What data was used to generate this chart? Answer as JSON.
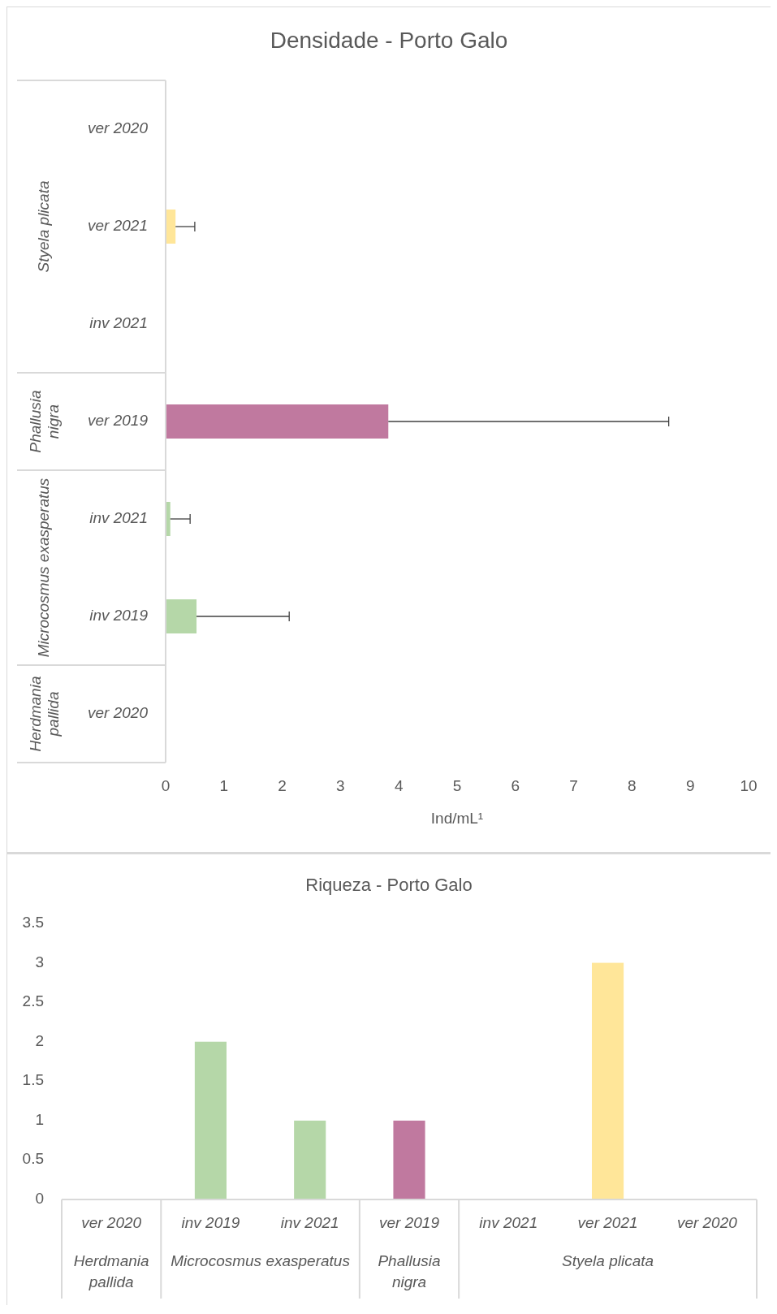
{
  "chart_data": [
    {
      "type": "bar",
      "orientation": "horizontal",
      "title": "Densidade - Porto Galo",
      "xlabel": "Ind/mL¹",
      "categories": [
        "ver 2020",
        "ver 2021",
        "inv 2021",
        "ver 2019",
        "inv 2021",
        "inv 2019",
        "ver 2020"
      ],
      "values": [
        0,
        0.17,
        0,
        3.82,
        0.08,
        0.53,
        0
      ],
      "errors": [
        null,
        [
          0.17,
          0.5
        ],
        null,
        [
          3.82,
          8.63
        ],
        [
          0.08,
          0.42
        ],
        [
          0.53,
          2.12
        ],
        null
      ],
      "colors": [
        "#ffe699",
        "#ffe699",
        "#ffe699",
        "#c0799f",
        "#b5d7a8",
        "#b5d7a8",
        "#bfbfbf"
      ],
      "xlim": [
        0,
        10
      ],
      "xticks": [
        0,
        1,
        2,
        3,
        4,
        5,
        6,
        7,
        8,
        9,
        10
      ],
      "annotations": [
        "Styela plicata",
        "Phallusia nigra",
        "Microcosmus exasperatus",
        "Herdmania pallida"
      ]
    },
    {
      "type": "bar",
      "title": "Riqueza - Porto Galo",
      "categories": [
        "ver 2020",
        "inv 2019",
        "inv 2021",
        "ver 2019",
        "inv 2021",
        "ver 2021",
        "ver 2020"
      ],
      "values": [
        0,
        2,
        1,
        1,
        0,
        3,
        0
      ],
      "colors": [
        "#bfbfbf",
        "#b5d7a8",
        "#b5d7a8",
        "#c0799f",
        "#ffe699",
        "#ffe699",
        "#ffe699"
      ],
      "ylim": [
        0,
        3.5
      ],
      "yticks": [
        0,
        0.5,
        1,
        1.5,
        2,
        2.5,
        3,
        3.5
      ],
      "annotations": [
        "Herdmania pallida",
        "Microcosmus exasperatus",
        "Phallusia nigra",
        "Styela plicata"
      ]
    }
  ]
}
